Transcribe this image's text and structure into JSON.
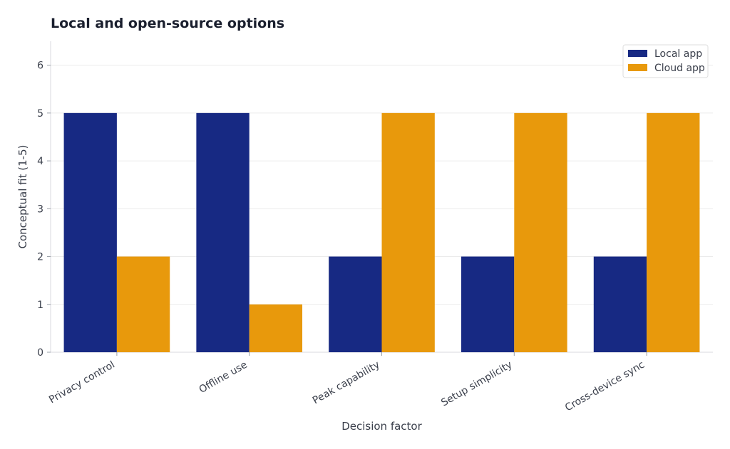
{
  "chart_data": {
    "type": "bar",
    "title": "Local and open-source options",
    "xlabel": "Decision factor",
    "ylabel": "Conceptual fit (1-5)",
    "categories": [
      "Privacy control",
      "Offline use",
      "Peak capability",
      "Setup simplicity",
      "Cross-device sync"
    ],
    "series": [
      {
        "name": "Local app",
        "color": "#172983",
        "values": [
          5,
          5,
          2,
          2,
          2
        ]
      },
      {
        "name": "Cloud app",
        "color": "#e8990c",
        "values": [
          2,
          1,
          5,
          5,
          5
        ]
      }
    ],
    "ylim": [
      0,
      6.5
    ],
    "yticks": [
      0,
      1,
      2,
      3,
      4,
      5,
      6
    ],
    "grid": true,
    "legend_position": "top-right"
  }
}
